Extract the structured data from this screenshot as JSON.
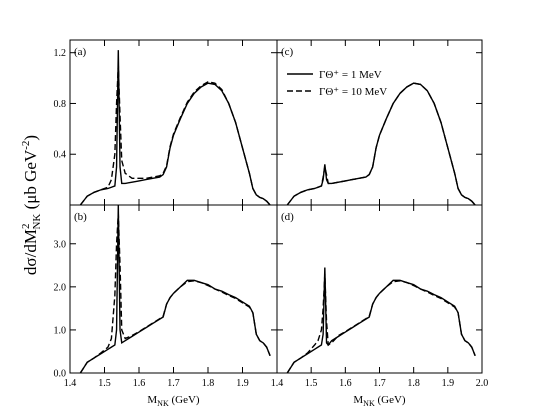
{
  "y_label": {
    "main": "dσ/dM",
    "sup": "2",
    "sub": "NK",
    "rest": "  (μb GeV",
    "unit_sup": "-2",
    "close": ")"
  },
  "x_label": {
    "main": "M",
    "sub": "NK",
    "rest": " (GeV)"
  },
  "chart_data": [
    {
      "type": "line",
      "panel": "(a)",
      "x": [
        1.43,
        1.45,
        1.47,
        1.49,
        1.51,
        1.52,
        1.53,
        1.535,
        1.54,
        1.545,
        1.55,
        1.56,
        1.58,
        1.6,
        1.62,
        1.64,
        1.66,
        1.67,
        1.68,
        1.69,
        1.7,
        1.72,
        1.74,
        1.76,
        1.78,
        1.8,
        1.82,
        1.84,
        1.86,
        1.88,
        1.9,
        1.92,
        1.93,
        1.94,
        1.95,
        1.96,
        1.97,
        1.98
      ],
      "series": [
        {
          "color": "#000000",
          "style": "solid",
          "values": [
            0,
            0.07,
            0.1,
            0.12,
            0.13,
            0.14,
            0.15,
            0.3,
            1.22,
            0.3,
            0.17,
            0.17,
            0.18,
            0.19,
            0.2,
            0.21,
            0.22,
            0.24,
            0.3,
            0.45,
            0.55,
            0.68,
            0.8,
            0.88,
            0.93,
            0.96,
            0.95,
            0.9,
            0.8,
            0.65,
            0.45,
            0.25,
            0.13,
            0.08,
            0.06,
            0.05,
            0.03,
            0
          ]
        },
        {
          "color": "#000000",
          "style": "dashed",
          "values": [
            0,
            0.07,
            0.1,
            0.12,
            0.14,
            0.2,
            0.4,
            0.8,
            1.1,
            0.7,
            0.35,
            0.25,
            0.21,
            0.21,
            0.21,
            0.22,
            0.23,
            0.25,
            0.31,
            0.46,
            0.56,
            0.69,
            0.81,
            0.89,
            0.94,
            0.97,
            0.96,
            0.91,
            0.8,
            0.65,
            0.45,
            0.25,
            0.13,
            0.08,
            0.06,
            0.05,
            0.03,
            0
          ]
        }
      ],
      "xlim": [
        1.4,
        2.0
      ],
      "ylim": [
        0,
        1.3
      ],
      "yticks": [
        0.4,
        0.8,
        1.2
      ]
    },
    {
      "type": "line",
      "panel": "(c)",
      "x": [
        1.43,
        1.45,
        1.47,
        1.49,
        1.51,
        1.52,
        1.53,
        1.535,
        1.54,
        1.545,
        1.55,
        1.56,
        1.58,
        1.6,
        1.62,
        1.64,
        1.66,
        1.67,
        1.68,
        1.69,
        1.7,
        1.72,
        1.74,
        1.76,
        1.78,
        1.8,
        1.82,
        1.84,
        1.86,
        1.88,
        1.9,
        1.92,
        1.93,
        1.94,
        1.95,
        1.96,
        1.97,
        1.98
      ],
      "series": [
        {
          "name": "ΓΘ⁺ = 1 MeV",
          "color": "#000000",
          "style": "solid",
          "values": [
            0,
            0.07,
            0.1,
            0.12,
            0.13,
            0.14,
            0.15,
            0.2,
            0.32,
            0.2,
            0.17,
            0.17,
            0.18,
            0.19,
            0.2,
            0.21,
            0.22,
            0.24,
            0.3,
            0.45,
            0.55,
            0.68,
            0.8,
            0.88,
            0.93,
            0.96,
            0.95,
            0.9,
            0.8,
            0.65,
            0.45,
            0.25,
            0.13,
            0.08,
            0.06,
            0.05,
            0.03,
            0
          ]
        },
        {
          "name": "ΓΘ⁺ = 10 MeV",
          "color": "#000000",
          "style": "dashed",
          "values": [
            0,
            0.07,
            0.1,
            0.12,
            0.13,
            0.14,
            0.15,
            0.22,
            0.3,
            0.24,
            0.17,
            0.17,
            0.18,
            0.19,
            0.2,
            0.21,
            0.22,
            0.24,
            0.3,
            0.45,
            0.55,
            0.68,
            0.8,
            0.88,
            0.93,
            0.96,
            0.95,
            0.9,
            0.8,
            0.65,
            0.45,
            0.25,
            0.13,
            0.08,
            0.06,
            0.05,
            0.03,
            0
          ]
        }
      ],
      "xlim": [
        1.4,
        2.0
      ],
      "ylim": [
        0,
        1.3
      ]
    },
    {
      "type": "line",
      "panel": "(b)",
      "x": [
        1.43,
        1.45,
        1.47,
        1.49,
        1.51,
        1.52,
        1.53,
        1.535,
        1.54,
        1.545,
        1.55,
        1.56,
        1.58,
        1.6,
        1.62,
        1.64,
        1.66,
        1.67,
        1.68,
        1.69,
        1.7,
        1.72,
        1.74,
        1.76,
        1.78,
        1.8,
        1.82,
        1.84,
        1.86,
        1.88,
        1.9,
        1.92,
        1.93,
        1.94,
        1.95,
        1.96,
        1.97,
        1.98
      ],
      "series": [
        {
          "color": "#000000",
          "style": "solid",
          "values": [
            0,
            0.25,
            0.35,
            0.45,
            0.55,
            0.6,
            0.65,
            1.0,
            3.9,
            1.0,
            0.7,
            0.75,
            0.85,
            0.95,
            1.05,
            1.15,
            1.25,
            1.3,
            1.6,
            1.75,
            1.85,
            2.0,
            2.15,
            2.15,
            2.1,
            2.05,
            1.95,
            1.9,
            1.82,
            1.75,
            1.65,
            1.55,
            1.4,
            0.9,
            0.75,
            0.7,
            0.6,
            0.4
          ]
        },
        {
          "color": "#000000",
          "style": "dashed",
          "values": [
            0,
            0.25,
            0.35,
            0.47,
            0.6,
            0.8,
            1.8,
            3.0,
            3.7,
            2.5,
            1.0,
            0.8,
            0.87,
            0.96,
            1.06,
            1.16,
            1.26,
            1.32,
            1.6,
            1.75,
            1.85,
            2.0,
            2.12,
            2.14,
            2.1,
            2.03,
            1.95,
            1.88,
            1.8,
            1.73,
            1.63,
            1.53,
            1.4,
            0.9,
            0.75,
            0.7,
            0.6,
            0.4
          ]
        }
      ],
      "xlim": [
        1.4,
        2.0
      ],
      "ylim": [
        0,
        3.9
      ],
      "xticks": [
        1.4,
        1.5,
        1.6,
        1.7,
        1.8,
        1.9
      ],
      "yticks": [
        {
          "value": 0,
          "label": "0.0"
        },
        {
          "value": 1,
          "label": "1.0"
        },
        {
          "value": 2,
          "label": "2.0"
        },
        {
          "value": 3,
          "label": "3.0"
        }
      ]
    },
    {
      "type": "line",
      "panel": "(d)",
      "x": [
        1.43,
        1.45,
        1.47,
        1.49,
        1.51,
        1.52,
        1.53,
        1.535,
        1.54,
        1.545,
        1.55,
        1.56,
        1.58,
        1.6,
        1.62,
        1.64,
        1.66,
        1.67,
        1.68,
        1.69,
        1.7,
        1.72,
        1.74,
        1.76,
        1.78,
        1.8,
        1.82,
        1.84,
        1.86,
        1.88,
        1.9,
        1.92,
        1.93,
        1.94,
        1.95,
        1.96,
        1.97,
        1.98
      ],
      "series": [
        {
          "color": "#000000",
          "style": "solid",
          "values": [
            0,
            0.25,
            0.35,
            0.45,
            0.55,
            0.6,
            0.65,
            0.9,
            2.45,
            0.7,
            0.65,
            0.75,
            0.85,
            0.95,
            1.05,
            1.15,
            1.25,
            1.3,
            1.6,
            1.75,
            1.85,
            2.0,
            2.15,
            2.15,
            2.1,
            2.05,
            1.95,
            1.9,
            1.82,
            1.75,
            1.65,
            1.55,
            1.4,
            0.9,
            0.75,
            0.7,
            0.6,
            0.4
          ]
        },
        {
          "color": "#000000",
          "style": "dashed",
          "values": [
            0,
            0.25,
            0.35,
            0.47,
            0.65,
            0.75,
            1.0,
            1.5,
            2.3,
            1.2,
            0.65,
            0.7,
            0.87,
            0.96,
            1.06,
            1.16,
            1.26,
            1.32,
            1.6,
            1.75,
            1.85,
            2.0,
            2.12,
            2.14,
            2.1,
            2.03,
            1.95,
            1.88,
            1.8,
            1.73,
            1.63,
            1.53,
            1.4,
            0.9,
            0.75,
            0.7,
            0.6,
            0.4
          ]
        }
      ],
      "xlim": [
        1.4,
        2.0
      ],
      "ylim": [
        0,
        3.9
      ],
      "xticks": [
        1.4,
        1.5,
        1.6,
        1.7,
        1.8,
        1.9,
        {
          "value": 2.0,
          "label": "2.0"
        }
      ]
    }
  ]
}
